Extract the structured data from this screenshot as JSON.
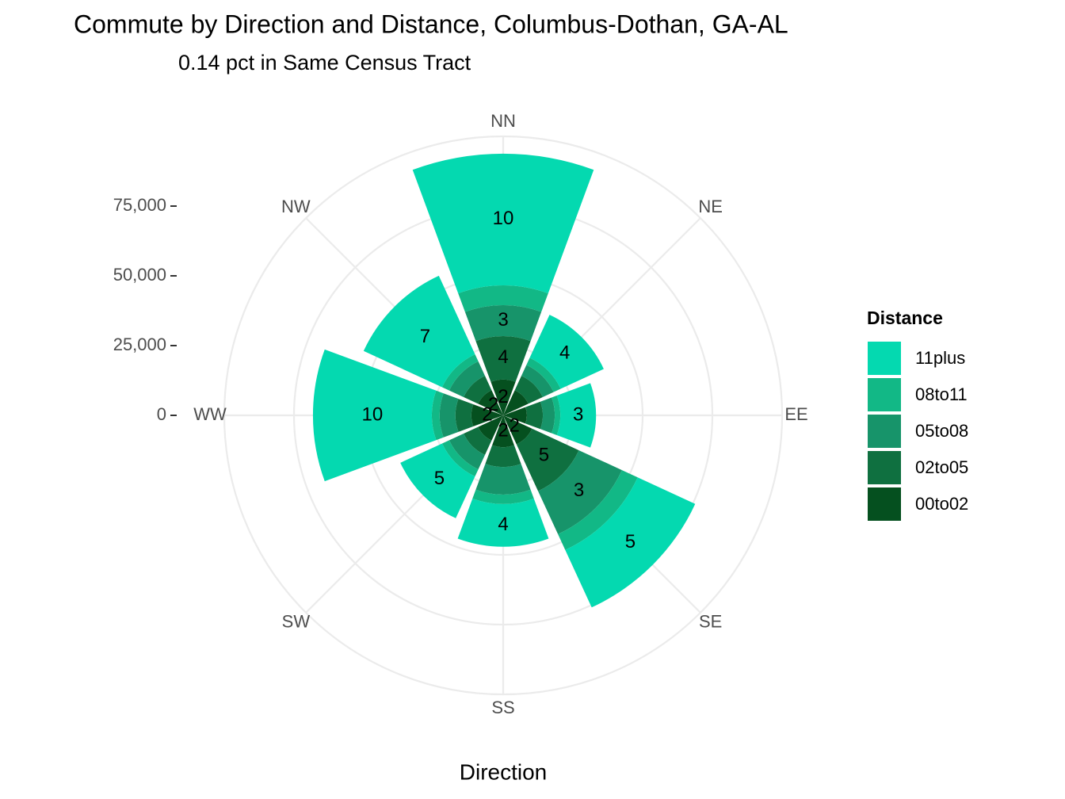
{
  "chart_data": {
    "type": "polar_stacked_bar",
    "title": "Commute by Direction and Distance, Columbus-Dothan,  GA-AL",
    "subtitle": "0.14 pct in Same Census Tract",
    "x_label": "Direction",
    "legend_title": "Distance",
    "categories": [
      "NN",
      "NE",
      "EE",
      "SE",
      "SS",
      "SW",
      "WW",
      "NW"
    ],
    "series": [
      {
        "name": "11plus",
        "color": "#04d9b0",
        "values": [
          47200,
          17000,
          12800,
          22700,
          15300,
          16500,
          42600,
          31000
        ],
        "segment_labels": [
          "10",
          "4",
          "3",
          "5",
          "4",
          "5",
          "10",
          "7"
        ]
      },
      {
        "name": "08to11",
        "color": "#12b886",
        "values": [
          7100,
          2800,
          2000,
          6200,
          3400,
          2800,
          2800,
          2800
        ],
        "segment_labels": [
          null,
          null,
          null,
          null,
          null,
          null,
          null,
          null
        ]
      },
      {
        "name": "05to08",
        "color": "#17946a",
        "values": [
          11100,
          4300,
          4300,
          17000,
          9900,
          5700,
          5700,
          5700
        ],
        "segment_labels": [
          "3",
          null,
          null,
          "3",
          null,
          null,
          null,
          null
        ]
      },
      {
        "name": "02to05",
        "color": "#0f7040",
        "values": [
          15600,
          5700,
          5700,
          18500,
          7100,
          5700,
          5700,
          5700
        ],
        "segment_labels": [
          "4",
          null,
          null,
          "5",
          null,
          null,
          null,
          null
        ]
      },
      {
        "name": "00to02",
        "color": "#05501f",
        "values": [
          12800,
          9900,
          8500,
          11400,
          11400,
          9900,
          11400,
          9900
        ],
        "segment_labels": [
          "2",
          null,
          null,
          "2",
          "2",
          null,
          "2",
          "2"
        ]
      }
    ],
    "ylim": [
      0,
      100000
    ],
    "yticks": [
      0,
      {
        "value": 25000,
        "label": "25,000"
      },
      {
        "value": 50000,
        "label": "50,000"
      },
      {
        "value": 75000,
        "label": "75,000"
      }
    ],
    "grid": true
  }
}
